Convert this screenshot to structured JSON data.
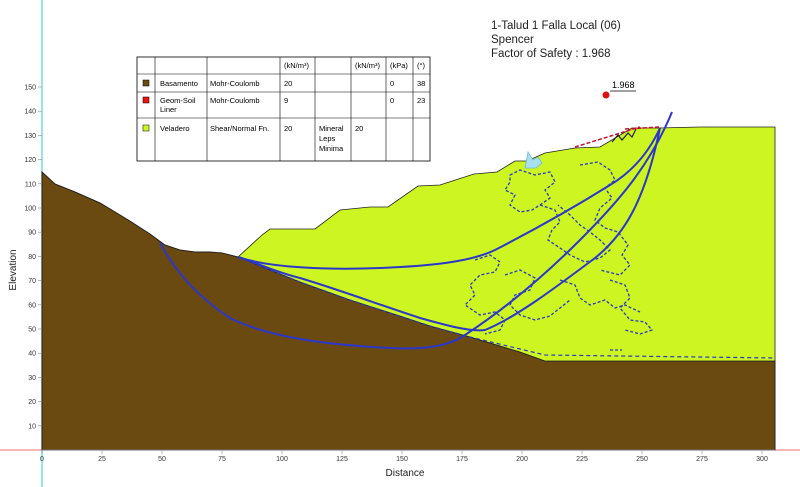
{
  "header": {
    "title": "1-Talud 1 Falla Local (06)",
    "method": "Spencer",
    "fos_label": "Factor of Safety : 1.968"
  },
  "center_label": "1.968",
  "axes": {
    "x_label": "Distance",
    "y_label": "Elevation",
    "x_ticks": [
      "0",
      "25",
      "50",
      "75",
      "100",
      "125",
      "150",
      "175",
      "200",
      "225",
      "250",
      "275",
      "300"
    ],
    "y_ticks": [
      "10",
      "20",
      "30",
      "40",
      "50",
      "60",
      "70",
      "80",
      "90",
      "100",
      "110",
      "120",
      "130",
      "140",
      "150"
    ]
  },
  "materials_table": {
    "headers": [
      "",
      "",
      "",
      "(kN/m³)",
      "",
      "(kN/m³)",
      "(kPa)",
      "(°)"
    ],
    "rows": [
      {
        "name": "Basamento",
        "model": "Mohr-Coulomb",
        "c1": "20",
        "c2": "",
        "c3": "",
        "c4": "0",
        "c5": "38",
        "color": "#6b4a12"
      },
      {
        "name_lines": [
          "Geom-Soil",
          "Liner"
        ],
        "model": "Mohr-Coulomb",
        "c1": "9",
        "c2": "",
        "c3": "",
        "c4": "0",
        "c5": "23",
        "color": "#ee1111"
      },
      {
        "name": "Veladero",
        "model": "Shear/Normal Fn.",
        "c1": "20",
        "c2_lines": [
          "Mineral",
          "Leps",
          "Minima"
        ],
        "c3": "20",
        "c4": "",
        "c5": "",
        "color": "#ccf522"
      }
    ]
  },
  "colors": {
    "bedrock": "#6b4a12",
    "heap": "#ccf522",
    "slip": "#2c37c8",
    "center": "#dd1111",
    "axis_guide_v": "#6fe0e0",
    "axis_guide_h": "#f07070",
    "liner": "#c8102e"
  }
}
